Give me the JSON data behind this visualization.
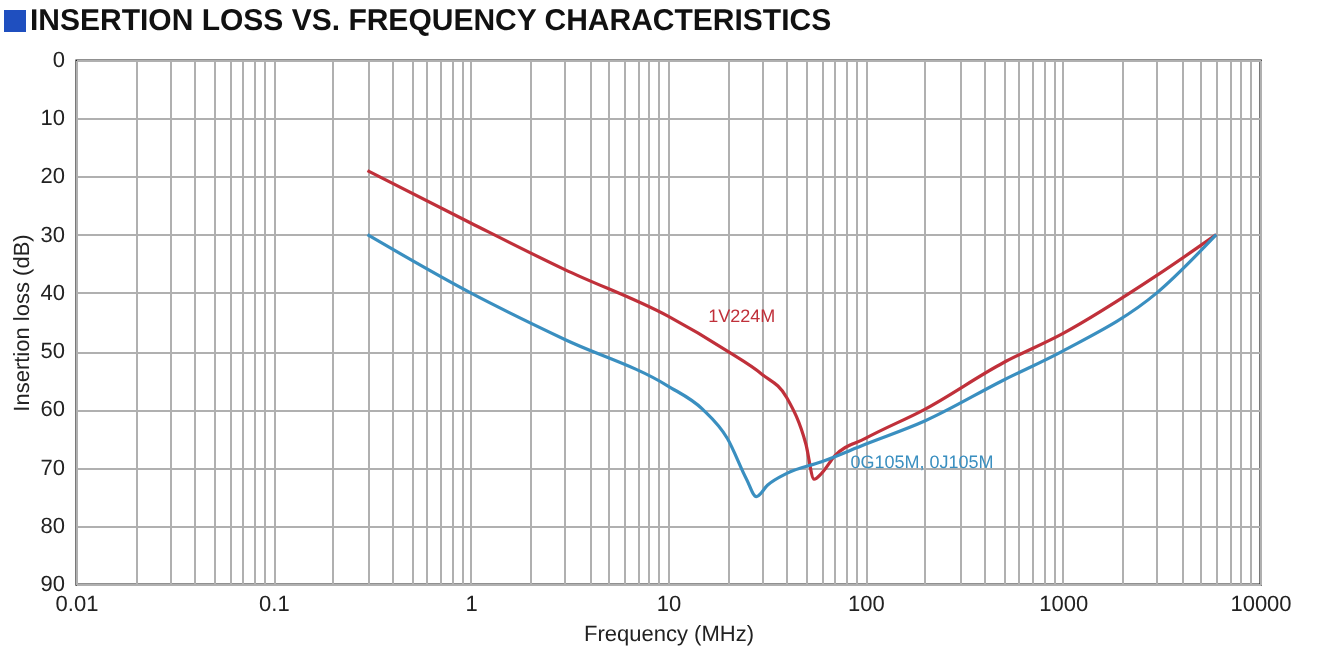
{
  "chart_data": {
    "type": "line",
    "title": "INSERTION LOSS VS. FREQUENCY CHARACTERISTICS",
    "xlabel": "Frequency (MHz)",
    "ylabel": "Insertion loss (dB)",
    "log": "x",
    "grid": true,
    "legend": false,
    "xlim": [
      0.01,
      10000
    ],
    "ylim": [
      90,
      0
    ],
    "xticks": [
      {
        "value": 0.01,
        "label": "0.01"
      },
      {
        "value": 0.02,
        "label": null
      },
      {
        "value": 0.03,
        "label": null
      },
      {
        "value": 0.04,
        "label": null
      },
      {
        "value": 0.05,
        "label": null
      },
      {
        "value": 0.06,
        "label": null
      },
      {
        "value": 0.07,
        "label": null
      },
      {
        "value": 0.08,
        "label": null
      },
      {
        "value": 0.09,
        "label": null
      },
      {
        "value": 0.1,
        "label": "0.1"
      },
      {
        "value": 0.2,
        "label": null
      },
      {
        "value": 0.3,
        "label": null
      },
      {
        "value": 0.4,
        "label": null
      },
      {
        "value": 0.5,
        "label": null
      },
      {
        "value": 0.6,
        "label": null
      },
      {
        "value": 0.7,
        "label": null
      },
      {
        "value": 0.8,
        "label": null
      },
      {
        "value": 0.9,
        "label": null
      },
      1,
      {
        "value": 2,
        "label": null
      },
      {
        "value": 3,
        "label": null
      },
      {
        "value": 4,
        "label": null
      },
      {
        "value": 5,
        "label": null
      },
      {
        "value": 6,
        "label": null
      },
      {
        "value": 7,
        "label": null
      },
      {
        "value": 8,
        "label": null
      },
      {
        "value": 9,
        "label": null
      },
      10,
      {
        "value": 20,
        "label": null
      },
      {
        "value": 30,
        "label": null
      },
      {
        "value": 40,
        "label": null
      },
      {
        "value": 50,
        "label": null
      },
      {
        "value": 60,
        "label": null
      },
      {
        "value": 70,
        "label": null
      },
      {
        "value": 80,
        "label": null
      },
      {
        "value": 90,
        "label": null
      },
      100,
      {
        "value": 200,
        "label": null
      },
      {
        "value": 300,
        "label": null
      },
      {
        "value": 400,
        "label": null
      },
      {
        "value": 500,
        "label": null
      },
      {
        "value": 600,
        "label": null
      },
      {
        "value": 700,
        "label": null
      },
      {
        "value": 800,
        "label": null
      },
      {
        "value": 900,
        "label": null
      },
      1000,
      {
        "value": 2000,
        "label": null
      },
      {
        "value": 3000,
        "label": null
      },
      {
        "value": 4000,
        "label": null
      },
      {
        "value": 5000,
        "label": null
      },
      {
        "value": 6000,
        "label": null
      },
      {
        "value": 7000,
        "label": null
      },
      {
        "value": 8000,
        "label": null
      },
      {
        "value": 9000,
        "label": null
      },
      10000
    ],
    "yticks": [
      0,
      10,
      20,
      30,
      40,
      50,
      60,
      70,
      80,
      90
    ],
    "series": [
      {
        "name": "1V224M",
        "color": "#c0303a",
        "x": [
          0.3,
          1,
          3,
          10,
          20,
          30,
          40,
          50,
          55,
          60,
          70,
          100,
          200,
          500,
          1000,
          3000,
          6000
        ],
        "values": [
          19,
          28,
          36,
          44,
          50,
          54,
          58,
          66,
          72,
          71,
          68,
          65,
          60,
          52,
          47,
          37,
          30
        ]
      },
      {
        "name": "0G105M, 0J105M",
        "color": "#3a8fc0",
        "x": [
          0.3,
          1,
          3,
          10,
          15,
          20,
          25,
          28,
          32,
          40,
          60,
          100,
          200,
          500,
          1000,
          3000,
          6000
        ],
        "values": [
          30,
          40,
          48,
          56,
          60,
          65,
          72,
          75,
          73,
          71,
          69,
          66,
          62,
          55,
          50,
          40,
          30
        ]
      }
    ]
  }
}
